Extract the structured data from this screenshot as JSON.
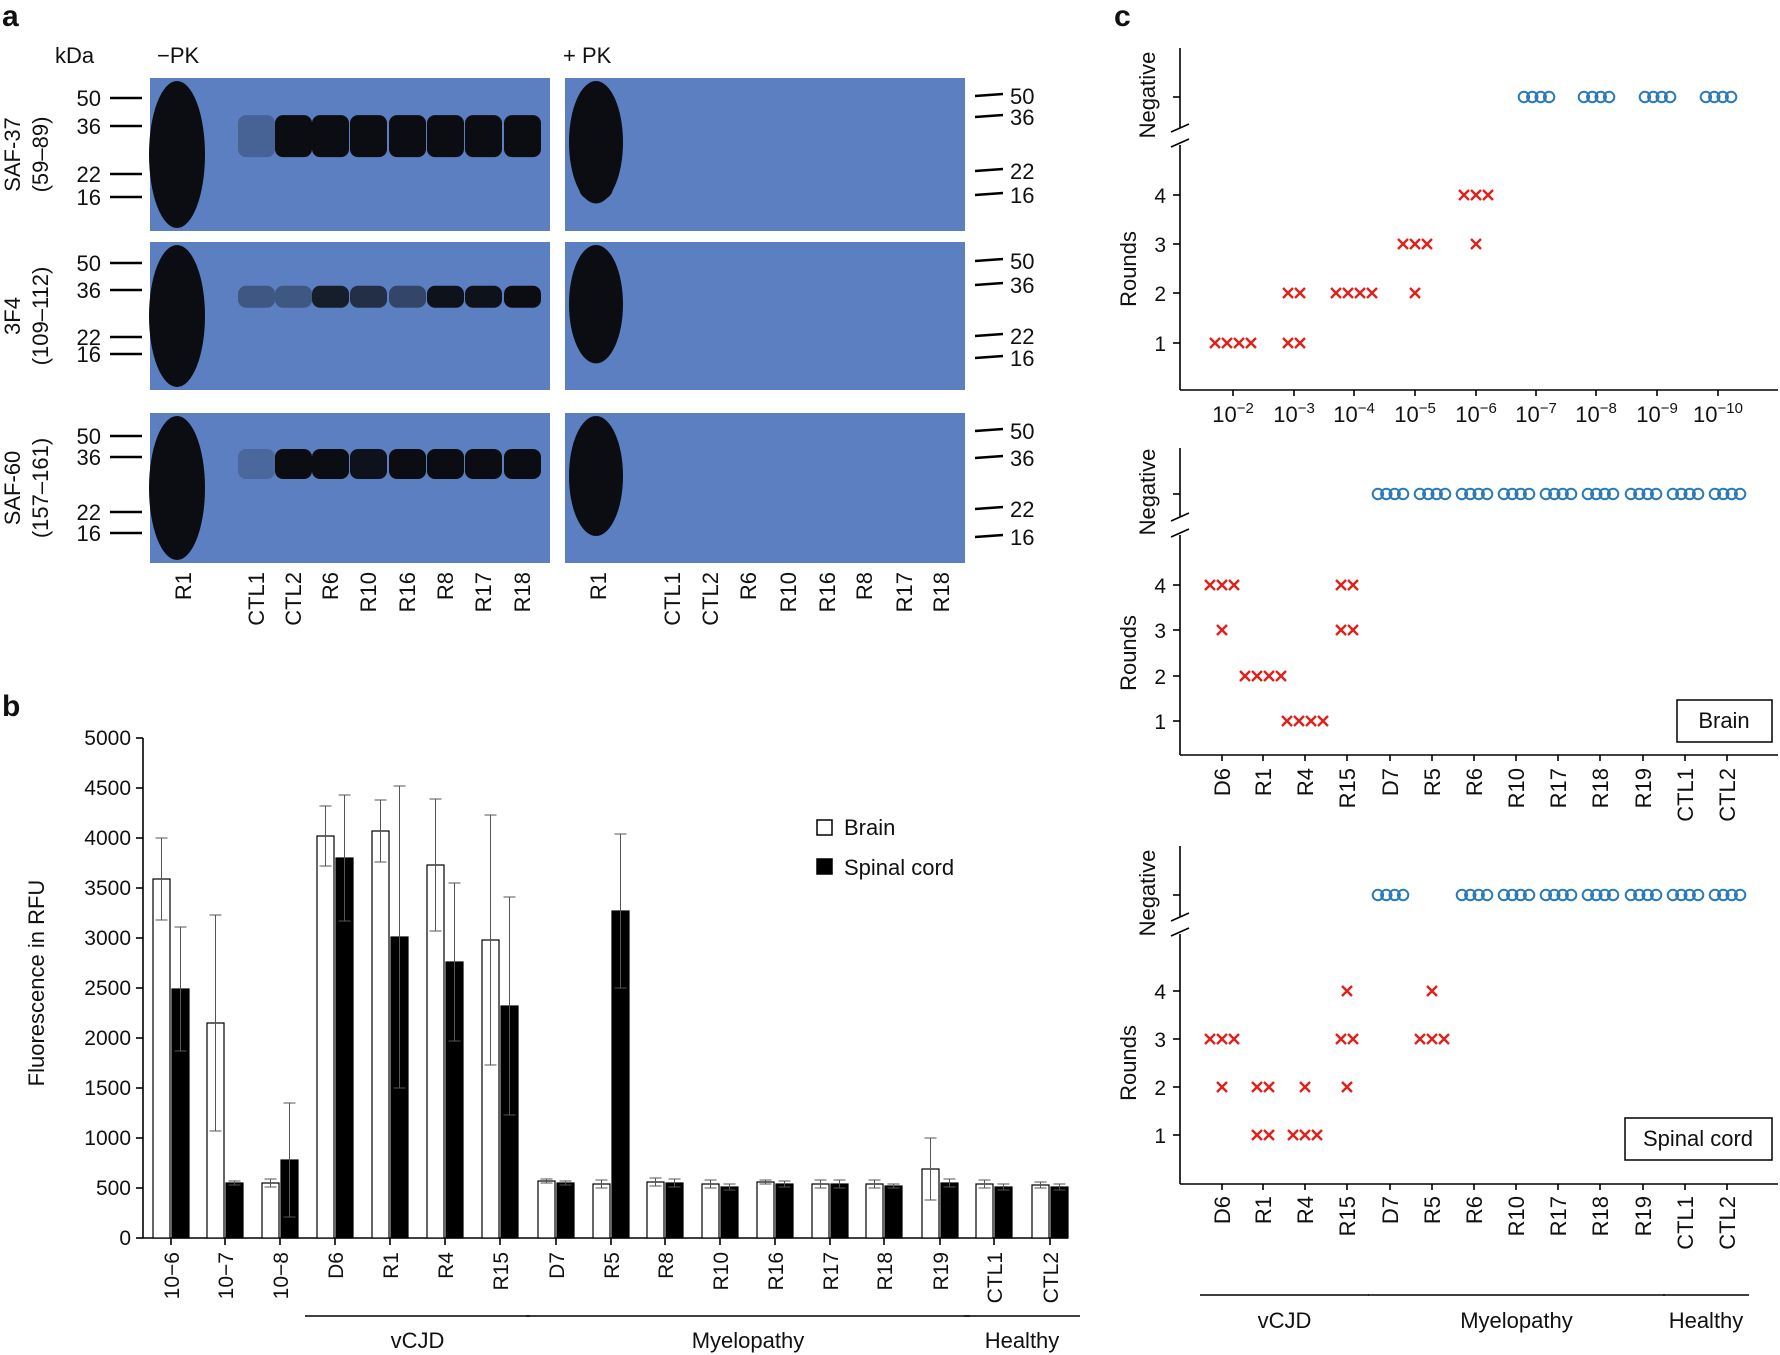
{
  "panel_a": {
    "label": "a",
    "kda_label": "kDa",
    "minus_pk": "−PK",
    "plus_pk": "+ PK",
    "blots": [
      {
        "antibody": "SAF-37",
        "epitope": "(59–89)",
        "markers": [
          "50",
          "36",
          "22",
          "16"
        ]
      },
      {
        "antibody": "3F4",
        "epitope": "(109–112)",
        "markers": [
          "50",
          "36",
          "22",
          "16"
        ]
      },
      {
        "antibody": "SAF-60",
        "epitope": "(157–161)",
        "markers": [
          "50",
          "36",
          "22",
          "16"
        ]
      }
    ],
    "lanes": [
      "R1",
      "CTL1",
      "CTL2",
      "R6",
      "R10",
      "R16",
      "R8",
      "R17",
      "R18"
    ],
    "colors": {
      "membrane": "#5b7fc0",
      "band": "#0b0d12"
    }
  },
  "panel_b": {
    "label": "b",
    "groups": [
      "vCJD",
      "Myelopathy",
      "Healthy"
    ]
  },
  "panel_c": {
    "label": "c",
    "groups": [
      "vCJD",
      "Myelopathy",
      "Healthy"
    ],
    "top_dilutions": [
      "10−2",
      "10−3",
      "10−4",
      "10−5",
      "10−6",
      "10−7",
      "10−8",
      "10−9",
      "10−10"
    ],
    "sample_categories": [
      "D6",
      "R1",
      "R4",
      "R15",
      "D7",
      "R5",
      "R6",
      "R10",
      "R17",
      "R18",
      "R19",
      "CTL1",
      "CTL2"
    ],
    "box_labels": {
      "brain": "Brain",
      "spinal": "Spinal cord"
    }
  },
  "chart_data": [
    {
      "type": "bar",
      "title": "",
      "xlabel": "",
      "ylabel": "Fluorescence in RFU",
      "ylim": [
        0,
        5000
      ],
      "yticks": [
        0,
        500,
        1000,
        1500,
        2000,
        2500,
        3000,
        3500,
        4000,
        4500,
        5000
      ],
      "categories": [
        "10−6",
        "10−7",
        "10−8",
        "D6",
        "R1",
        "R4",
        "R15",
        "D7",
        "R5",
        "R8",
        "R10",
        "R16",
        "R17",
        "R18",
        "R19",
        "CTL1",
        "CTL2"
      ],
      "series": [
        {
          "name": "Brain",
          "color": "#ffffff",
          "values": [
            3590,
            2150,
            550,
            4020,
            4070,
            3730,
            2980,
            570,
            540,
            560,
            540,
            560,
            540,
            540,
            690,
            540,
            530
          ],
          "errors": [
            410,
            1080,
            40,
            300,
            310,
            660,
            1250,
            20,
            40,
            40,
            40,
            20,
            40,
            40,
            310,
            40,
            30
          ]
        },
        {
          "name": "Spinal cord",
          "color": "#000000",
          "values": [
            2490,
            550,
            780,
            3800,
            3010,
            2760,
            2320,
            550,
            3270,
            550,
            510,
            540,
            540,
            520,
            550,
            510,
            510
          ],
          "errors": [
            620,
            20,
            570,
            630,
            1510,
            790,
            1090,
            20,
            770,
            40,
            30,
            30,
            40,
            20,
            40,
            30,
            30
          ]
        }
      ],
      "legend": [
        "Brain",
        "Spinal cord"
      ],
      "legend_position": "top-right"
    },
    {
      "type": "scatter",
      "title": "",
      "xlabel": "",
      "ylabel": "Rounds",
      "categories": [
        "10−2",
        "10−3",
        "10−4",
        "10−5",
        "10−6",
        "10−7",
        "10−8",
        "10−9",
        "10−10"
      ],
      "yticks": [
        1,
        2,
        3,
        4
      ],
      "negative_label": "Negative",
      "points": [
        {
          "category": "10−2",
          "positive_rounds": [
            1,
            1,
            1,
            1
          ],
          "negative_count": 0
        },
        {
          "category": "10−3",
          "positive_rounds": [
            1,
            1,
            2,
            2
          ],
          "negative_count": 0
        },
        {
          "category": "10−4",
          "positive_rounds": [
            2,
            2,
            2,
            2
          ],
          "negative_count": 0
        },
        {
          "category": "10−5",
          "positive_rounds": [
            2,
            3,
            3,
            3
          ],
          "negative_count": 0
        },
        {
          "category": "10−6",
          "positive_rounds": [
            3,
            4,
            4,
            4
          ],
          "negative_count": 0
        },
        {
          "category": "10−7",
          "positive_rounds": [],
          "negative_count": 4
        },
        {
          "category": "10−8",
          "positive_rounds": [],
          "negative_count": 4
        },
        {
          "category": "10−9",
          "positive_rounds": [],
          "negative_count": 4
        },
        {
          "category": "10−10",
          "positive_rounds": [],
          "negative_count": 4
        }
      ]
    },
    {
      "type": "scatter",
      "title": "Brain",
      "xlabel": "",
      "ylabel": "Rounds",
      "categories": [
        "D6",
        "R1",
        "R4",
        "R15",
        "D7",
        "R5",
        "R6",
        "R10",
        "R17",
        "R18",
        "R19",
        "CTL1",
        "CTL2"
      ],
      "yticks": [
        1,
        2,
        3,
        4
      ],
      "negative_label": "Negative",
      "points": [
        {
          "category": "D6",
          "positive_rounds": [
            3,
            4,
            4,
            4
          ],
          "negative_count": 0
        },
        {
          "category": "R1",
          "positive_rounds": [
            2,
            2,
            2,
            2
          ],
          "negative_count": 0
        },
        {
          "category": "R4",
          "positive_rounds": [
            1,
            1,
            1,
            1
          ],
          "negative_count": 0
        },
        {
          "category": "R15",
          "positive_rounds": [
            3,
            3,
            4,
            4
          ],
          "negative_count": 0
        },
        {
          "category": "D7",
          "positive_rounds": [],
          "negative_count": 4
        },
        {
          "category": "R5",
          "positive_rounds": [],
          "negative_count": 4
        },
        {
          "category": "R6",
          "positive_rounds": [],
          "negative_count": 4
        },
        {
          "category": "R10",
          "positive_rounds": [],
          "negative_count": 4
        },
        {
          "category": "R17",
          "positive_rounds": [],
          "negative_count": 4
        },
        {
          "category": "R18",
          "positive_rounds": [],
          "negative_count": 4
        },
        {
          "category": "R19",
          "positive_rounds": [],
          "negative_count": 4
        },
        {
          "category": "CTL1",
          "positive_rounds": [],
          "negative_count": 4
        },
        {
          "category": "CTL2",
          "positive_rounds": [],
          "negative_count": 4
        }
      ]
    },
    {
      "type": "scatter",
      "title": "Spinal cord",
      "xlabel": "",
      "ylabel": "Rounds",
      "categories": [
        "D6",
        "R1",
        "R4",
        "R15",
        "D7",
        "R5",
        "R6",
        "R10",
        "R17",
        "R18",
        "R19",
        "CTL1",
        "CTL2"
      ],
      "yticks": [
        1,
        2,
        3,
        4
      ],
      "negative_label": "Negative",
      "points": [
        {
          "category": "D6",
          "positive_rounds": [
            2,
            3,
            3,
            3
          ],
          "negative_count": 0
        },
        {
          "category": "R1",
          "positive_rounds": [
            1,
            1,
            2,
            2
          ],
          "negative_count": 0
        },
        {
          "category": "R4",
          "positive_rounds": [
            1,
            1,
            1,
            2
          ],
          "negative_count": 0
        },
        {
          "category": "R15",
          "positive_rounds": [
            2,
            3,
            3,
            4
          ],
          "negative_count": 0
        },
        {
          "category": "D7",
          "positive_rounds": [],
          "negative_count": 4
        },
        {
          "category": "R5",
          "positive_rounds": [
            3,
            3,
            3,
            4
          ],
          "negative_count": 0
        },
        {
          "category": "R6",
          "positive_rounds": [],
          "negative_count": 4
        },
        {
          "category": "R10",
          "positive_rounds": [],
          "negative_count": 4
        },
        {
          "category": "R17",
          "positive_rounds": [],
          "negative_count": 4
        },
        {
          "category": "R18",
          "positive_rounds": [],
          "negative_count": 4
        },
        {
          "category": "R19",
          "positive_rounds": [],
          "negative_count": 4
        },
        {
          "category": "CTL1",
          "positive_rounds": [],
          "negative_count": 4
        },
        {
          "category": "CTL2",
          "positive_rounds": [],
          "negative_count": 4
        }
      ]
    }
  ],
  "colors": {
    "positive": "#e0201b",
    "negative": "#2a7ab8",
    "axis": "#000000"
  }
}
